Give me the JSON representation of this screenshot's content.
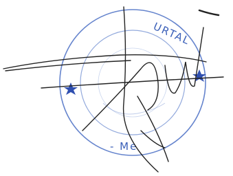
{
  "stamp": {
    "top_text": "URTAL",
    "bottom_text": "- Me"
  }
}
